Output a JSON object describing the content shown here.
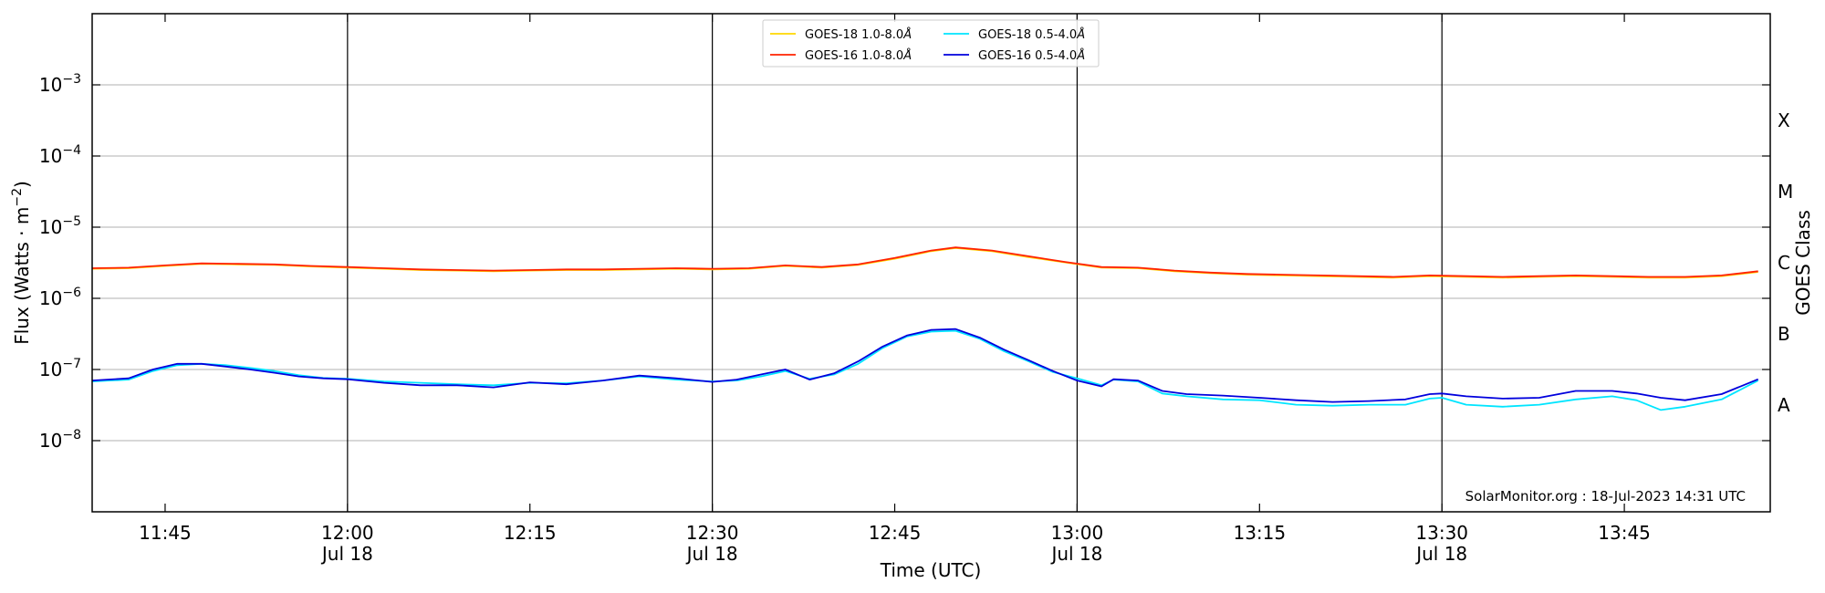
{
  "chart_data": {
    "type": "line",
    "xlabel": "Time (UTC)",
    "ylabel": "Flux (Watts · m",
    "ylabel_sup": "−2",
    "ylabel_close": ")",
    "y2label": "GOES Class",
    "credit": "SolarMonitor.org : 18-Jul-2023 14:31 UTC",
    "yscale": "log",
    "ylim": [
      1e-09,
      0.01
    ],
    "xlim": [
      "11:39",
      "13:57"
    ],
    "grid": "horizontal",
    "legend_position": "top-center",
    "x_ticks": [
      {
        "time": "11:45",
        "label": "11:45",
        "sub": ""
      },
      {
        "time": "12:00",
        "label": "12:00",
        "sub": "Jul 18"
      },
      {
        "time": "12:15",
        "label": "12:15",
        "sub": ""
      },
      {
        "time": "12:30",
        "label": "12:30",
        "sub": "Jul 18"
      },
      {
        "time": "12:45",
        "label": "12:45",
        "sub": ""
      },
      {
        "time": "13:00",
        "label": "13:00",
        "sub": "Jul 18"
      },
      {
        "time": "13:15",
        "label": "13:15",
        "sub": ""
      },
      {
        "time": "13:30",
        "label": "13:30",
        "sub": "Jul 18"
      },
      {
        "time": "13:45",
        "label": "13:45",
        "sub": ""
      }
    ],
    "day_lines": [
      "12:00",
      "12:30",
      "13:00",
      "13:30"
    ],
    "y_ticks": [
      {
        "exp": -8,
        "label": "10",
        "sup": "−8"
      },
      {
        "exp": -7,
        "label": "10",
        "sup": "−7"
      },
      {
        "exp": -6,
        "label": "10",
        "sup": "−6"
      },
      {
        "exp": -5,
        "label": "10",
        "sup": "−5"
      },
      {
        "exp": -4,
        "label": "10",
        "sup": "−4"
      },
      {
        "exp": -3,
        "label": "10",
        "sup": "−3"
      }
    ],
    "goes_classes": [
      {
        "label": "A",
        "exp": -7.5
      },
      {
        "label": "B",
        "exp": -6.5
      },
      {
        "label": "C",
        "exp": -5.5
      },
      {
        "label": "M",
        "exp": -4.5
      },
      {
        "label": "X",
        "exp": -3.5
      }
    ],
    "legend": [
      {
        "name": "GOES-18 1.0-8.0",
        "unit": "Å",
        "color": "#FFD700"
      },
      {
        "name": "GOES-16 1.0-8.0",
        "unit": "Å",
        "color": "#FF2200"
      },
      {
        "name": "GOES-18 0.5-4.0",
        "unit": "Å",
        "color": "#00E5FF"
      },
      {
        "name": "GOES-16 0.5-4.0",
        "unit": "Å",
        "color": "#0000DD"
      }
    ],
    "series": [
      {
        "name": "GOES-18 1.0-8.0",
        "color": "#FFD700",
        "x": [
          "11:39",
          "11:42",
          "11:45",
          "11:48",
          "11:51",
          "11:54",
          "11:57",
          "12:00",
          "12:03",
          "12:06",
          "12:09",
          "12:12",
          "12:15",
          "12:18",
          "12:21",
          "12:24",
          "12:27",
          "12:30",
          "12:33",
          "12:36",
          "12:39",
          "12:42",
          "12:45",
          "12:48",
          "12:50",
          "12:53",
          "12:56",
          "12:59",
          "13:02",
          "13:05",
          "13:08",
          "13:11",
          "13:14",
          "13:17",
          "13:20",
          "13:23",
          "13:26",
          "13:29",
          "13:32",
          "13:35",
          "13:38",
          "13:41",
          "13:44",
          "13:47",
          "13:50",
          "13:53",
          "13:56"
        ],
        "y": [
          2.6e-06,
          2.65e-06,
          2.85e-06,
          3.05e-06,
          3e-06,
          2.95e-06,
          2.8e-06,
          2.7e-06,
          2.6e-06,
          2.5e-06,
          2.45e-06,
          2.4e-06,
          2.45e-06,
          2.5e-06,
          2.5e-06,
          2.55e-06,
          2.6e-06,
          2.55e-06,
          2.6e-06,
          2.85e-06,
          2.7e-06,
          2.95e-06,
          3.6e-06,
          4.6e-06,
          5.1e-06,
          4.6e-06,
          3.8e-06,
          3.2e-06,
          2.7e-06,
          2.65e-06,
          2.4e-06,
          2.25e-06,
          2.15e-06,
          2.1e-06,
          2.05e-06,
          2e-06,
          1.95e-06,
          2.05e-06,
          2e-06,
          1.95e-06,
          2e-06,
          2.05e-06,
          2e-06,
          1.95e-06,
          1.95e-06,
          2.05e-06,
          2.35e-06
        ]
      },
      {
        "name": "GOES-16 1.0-8.0",
        "color": "#FF2200",
        "x": [
          "11:39",
          "11:42",
          "11:45",
          "11:48",
          "11:51",
          "11:54",
          "11:57",
          "12:00",
          "12:03",
          "12:06",
          "12:09",
          "12:12",
          "12:15",
          "12:18",
          "12:21",
          "12:24",
          "12:27",
          "12:30",
          "12:33",
          "12:36",
          "12:39",
          "12:42",
          "12:45",
          "12:48",
          "12:50",
          "12:53",
          "12:56",
          "12:59",
          "13:02",
          "13:05",
          "13:08",
          "13:11",
          "13:14",
          "13:17",
          "13:20",
          "13:23",
          "13:26",
          "13:29",
          "13:32",
          "13:35",
          "13:38",
          "13:41",
          "13:44",
          "13:47",
          "13:50",
          "13:53",
          "13:56"
        ],
        "y": [
          2.65e-06,
          2.7e-06,
          2.9e-06,
          3.1e-06,
          3.05e-06,
          3e-06,
          2.85e-06,
          2.75e-06,
          2.65e-06,
          2.55e-06,
          2.5e-06,
          2.45e-06,
          2.5e-06,
          2.55e-06,
          2.55e-06,
          2.6e-06,
          2.65e-06,
          2.6e-06,
          2.65e-06,
          2.9e-06,
          2.75e-06,
          3e-06,
          3.7e-06,
          4.7e-06,
          5.2e-06,
          4.7e-06,
          3.9e-06,
          3.25e-06,
          2.75e-06,
          2.7e-06,
          2.45e-06,
          2.3e-06,
          2.2e-06,
          2.15e-06,
          2.1e-06,
          2.05e-06,
          2e-06,
          2.1e-06,
          2.05e-06,
          2e-06,
          2.05e-06,
          2.1e-06,
          2.05e-06,
          2e-06,
          2e-06,
          2.1e-06,
          2.4e-06
        ]
      },
      {
        "name": "GOES-18 0.5-4.0",
        "color": "#00E5FF",
        "x": [
          "11:39",
          "11:42",
          "11:44",
          "11:46",
          "11:48",
          "11:50",
          "11:52",
          "11:54",
          "11:56",
          "11:58",
          "12:00",
          "12:03",
          "12:06",
          "12:09",
          "12:12",
          "12:15",
          "12:18",
          "12:21",
          "12:24",
          "12:27",
          "12:30",
          "12:32",
          "12:34",
          "12:36",
          "12:38",
          "12:40",
          "12:42",
          "12:44",
          "12:46",
          "12:48",
          "12:50",
          "12:52",
          "12:54",
          "12:56",
          "12:58",
          "13:00",
          "13:02",
          "13:03",
          "13:05",
          "13:07",
          "13:09",
          "13:12",
          "13:15",
          "13:18",
          "13:21",
          "13:24",
          "13:27",
          "13:29",
          "13:30",
          "13:32",
          "13:35",
          "13:38",
          "13:41",
          "13:44",
          "13:46",
          "13:48",
          "13:50",
          "13:53",
          "13:56"
        ],
        "y": [
          6.8e-08,
          7.2e-08,
          9.5e-08,
          1.15e-07,
          1.2e-07,
          1.15e-07,
          1.05e-07,
          9.5e-08,
          8.3e-08,
          7.6e-08,
          7.4e-08,
          6.8e-08,
          6.5e-08,
          6.2e-08,
          6e-08,
          6.5e-08,
          6.4e-08,
          7e-08,
          8e-08,
          7.2e-08,
          6.8e-08,
          7e-08,
          8e-08,
          9.5e-08,
          7.4e-08,
          8.5e-08,
          1.2e-07,
          2e-07,
          2.9e-07,
          3.4e-07,
          3.5e-07,
          2.7e-07,
          1.8e-07,
          1.3e-07,
          9.2e-08,
          7.5e-08,
          6e-08,
          7.2e-08,
          6.8e-08,
          4.6e-08,
          4.2e-08,
          3.8e-08,
          3.7e-08,
          3.2e-08,
          3.1e-08,
          3.2e-08,
          3.2e-08,
          3.9e-08,
          4e-08,
          3.2e-08,
          3e-08,
          3.2e-08,
          3.8e-08,
          4.2e-08,
          3.7e-08,
          2.7e-08,
          3e-08,
          3.8e-08,
          7e-08
        ]
      },
      {
        "name": "GOES-16 0.5-4.0",
        "color": "#0000DD",
        "x": [
          "11:39",
          "11:42",
          "11:44",
          "11:46",
          "11:48",
          "11:50",
          "11:52",
          "11:54",
          "11:56",
          "11:58",
          "12:00",
          "12:03",
          "12:06",
          "12:09",
          "12:12",
          "12:15",
          "12:18",
          "12:21",
          "12:24",
          "12:27",
          "12:30",
          "12:32",
          "12:34",
          "12:36",
          "12:38",
          "12:40",
          "12:42",
          "12:44",
          "12:46",
          "12:48",
          "12:50",
          "12:52",
          "12:54",
          "12:56",
          "12:58",
          "13:00",
          "13:02",
          "13:03",
          "13:05",
          "13:07",
          "13:09",
          "13:12",
          "13:15",
          "13:18",
          "13:21",
          "13:24",
          "13:27",
          "13:29",
          "13:30",
          "13:32",
          "13:35",
          "13:38",
          "13:41",
          "13:44",
          "13:46",
          "13:48",
          "13:50",
          "13:53",
          "13:56"
        ],
        "y": [
          7e-08,
          7.5e-08,
          1e-07,
          1.2e-07,
          1.2e-07,
          1.1e-07,
          1e-07,
          9e-08,
          8e-08,
          7.5e-08,
          7.3e-08,
          6.5e-08,
          6e-08,
          6e-08,
          5.6e-08,
          6.6e-08,
          6.2e-08,
          7e-08,
          8.2e-08,
          7.5e-08,
          6.7e-08,
          7.2e-08,
          8.5e-08,
          1e-07,
          7.2e-08,
          8.8e-08,
          1.3e-07,
          2.1e-07,
          3e-07,
          3.6e-07,
          3.7e-07,
          2.8e-07,
          1.9e-07,
          1.35e-07,
          9.5e-08,
          7e-08,
          5.8e-08,
          7.3e-08,
          7e-08,
          5e-08,
          4.5e-08,
          4.3e-08,
          4e-08,
          3.7e-08,
          3.5e-08,
          3.6e-08,
          3.8e-08,
          4.5e-08,
          4.6e-08,
          4.2e-08,
          3.9e-08,
          4e-08,
          5e-08,
          5e-08,
          4.6e-08,
          4e-08,
          3.7e-08,
          4.5e-08,
          7.3e-08
        ]
      }
    ]
  }
}
